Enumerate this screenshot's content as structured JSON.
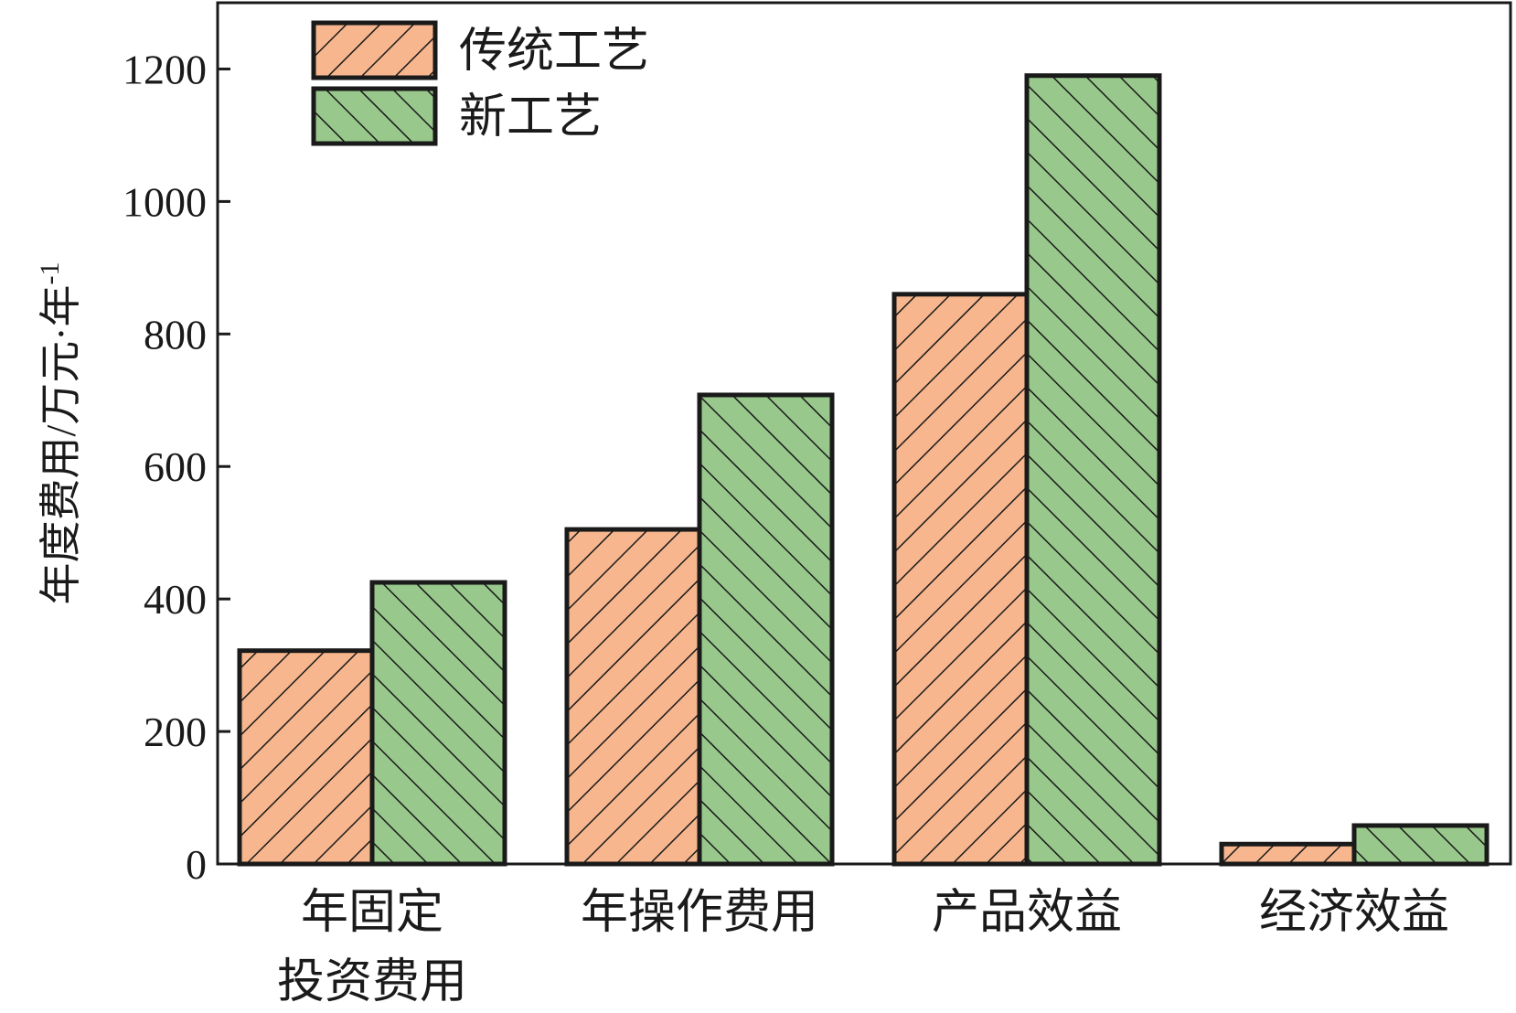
{
  "chart_data": {
    "type": "bar",
    "title": "",
    "xlabel": "",
    "ylabel": "年度费用/万元·年",
    "ylabel_sup": "-1",
    "ylim": [
      0,
      1300
    ],
    "yticks": [
      "0",
      "200",
      "400",
      "600",
      "800",
      "1000",
      "1200"
    ],
    "categories": [
      [
        "年固定",
        "投资费用"
      ],
      [
        "年操作费用"
      ],
      [
        "产品效益"
      ],
      [
        "经济效益"
      ]
    ],
    "series": [
      {
        "name": "传统工艺",
        "values": [
          322,
          505,
          860,
          30
        ],
        "color": "#f7b68d",
        "hatch": "forward"
      },
      {
        "name": "新工艺",
        "values": [
          425,
          708,
          1190,
          58
        ],
        "color": "#98c88b",
        "hatch": "backward"
      }
    ],
    "legend_position": "top-left",
    "grid": false
  }
}
